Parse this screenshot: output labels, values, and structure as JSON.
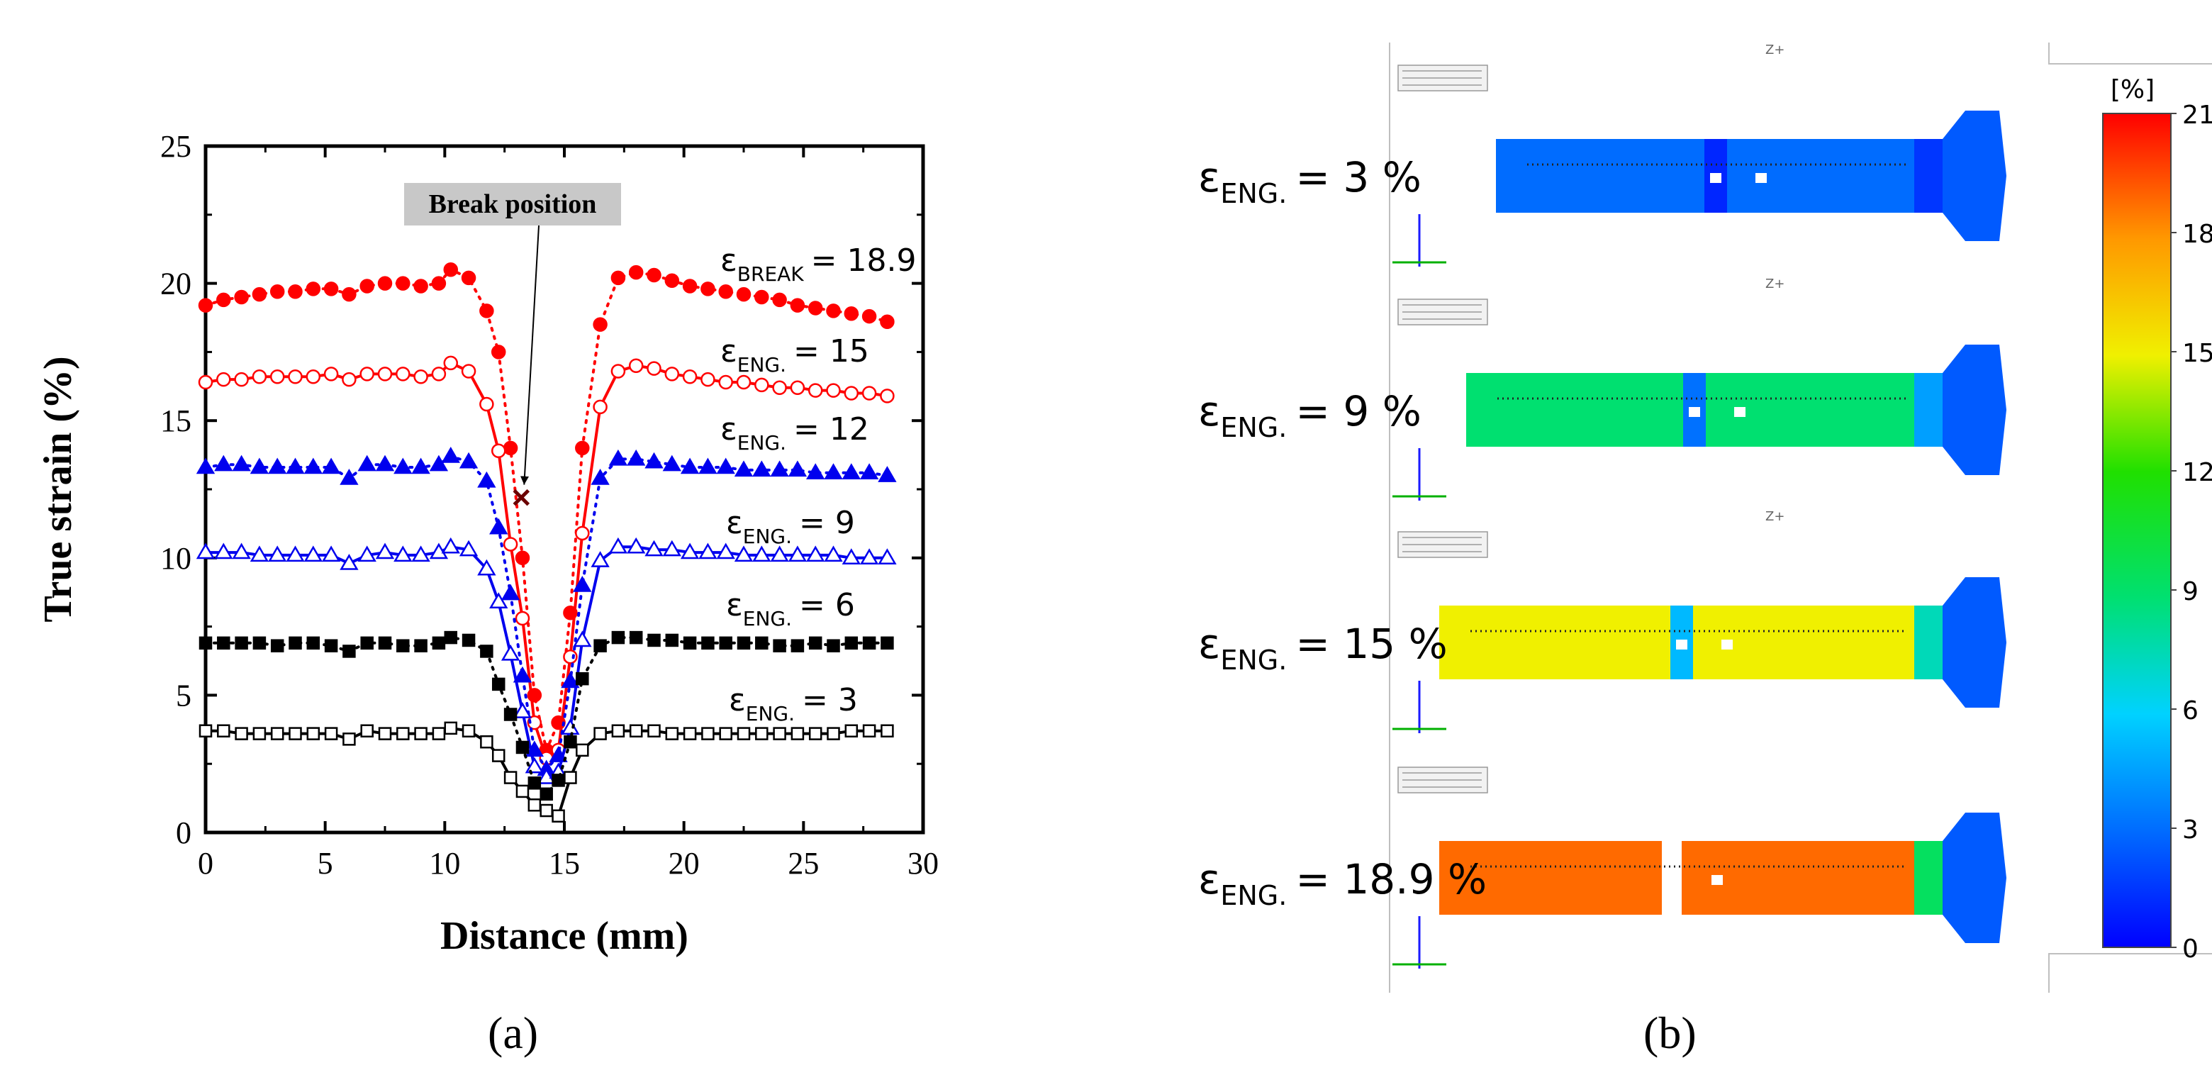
{
  "chart_data": {
    "type": "line",
    "title": "",
    "xlabel": "Distance (mm)",
    "ylabel": "True strain (%)",
    "xlim": [
      0,
      30
    ],
    "ylim": [
      0,
      25
    ],
    "xticks": [
      0,
      5,
      10,
      15,
      20,
      25,
      30
    ],
    "yticks": [
      0,
      5,
      10,
      15,
      20,
      25
    ],
    "annotation": {
      "text": "Break position",
      "x": 13.2,
      "y": 12.2
    },
    "x": [
      0,
      0.75,
      1.5,
      2.25,
      3,
      3.75,
      4.5,
      5.25,
      6,
      6.75,
      7.5,
      8.25,
      9,
      9.75,
      10.25,
      11,
      11.75,
      12.25,
      12.75,
      13.25,
      13.75,
      14.25,
      14.75,
      15.25,
      15.75,
      16.5,
      17.25,
      18,
      18.75,
      19.5,
      20.25,
      21,
      21.75,
      22.5,
      23.25,
      24,
      24.75,
      25.5,
      26.25,
      27,
      27.75,
      28.5
    ],
    "series": [
      {
        "name": "eps_BREAK",
        "label": {
          "sym": "ε",
          "sub": "BREAK",
          "value": "= 18.9"
        },
        "color": "#ff0000",
        "marker": "circle",
        "filled": true,
        "line": "dotted",
        "values": [
          19.2,
          19.4,
          19.5,
          19.6,
          19.7,
          19.7,
          19.8,
          19.8,
          19.6,
          19.9,
          20.0,
          20.0,
          19.9,
          20.0,
          20.5,
          20.2,
          19.0,
          17.5,
          14.0,
          10.0,
          5.0,
          3.0,
          4.0,
          8.0,
          14.0,
          18.5,
          20.2,
          20.4,
          20.3,
          20.1,
          19.9,
          19.8,
          19.7,
          19.6,
          19.5,
          19.4,
          19.2,
          19.1,
          19.0,
          18.9,
          18.8,
          18.6
        ]
      },
      {
        "name": "eps_ENG_15",
        "label": {
          "sym": "ε",
          "sub": "ENG.",
          "value": "= 15"
        },
        "color": "#ff0000",
        "marker": "circle",
        "filled": false,
        "line": "solid",
        "values": [
          16.4,
          16.5,
          16.5,
          16.6,
          16.6,
          16.6,
          16.6,
          16.7,
          16.5,
          16.7,
          16.7,
          16.7,
          16.6,
          16.7,
          17.1,
          16.8,
          15.6,
          13.9,
          10.5,
          7.8,
          4.0,
          2.7,
          3.0,
          6.4,
          10.9,
          15.5,
          16.8,
          17.0,
          16.9,
          16.7,
          16.6,
          16.5,
          16.4,
          16.4,
          16.3,
          16.2,
          16.2,
          16.1,
          16.1,
          16.0,
          16.0,
          15.9
        ]
      },
      {
        "name": "eps_ENG_12",
        "label": {
          "sym": "ε",
          "sub": "ENG.",
          "value": "= 12"
        },
        "color": "#0000ee",
        "marker": "triangle",
        "filled": true,
        "line": "dotted",
        "values": [
          13.3,
          13.4,
          13.4,
          13.3,
          13.3,
          13.3,
          13.3,
          13.3,
          12.9,
          13.4,
          13.4,
          13.3,
          13.3,
          13.4,
          13.7,
          13.5,
          12.8,
          11.1,
          8.7,
          5.7,
          3.0,
          2.3,
          2.8,
          5.5,
          9.0,
          12.9,
          13.6,
          13.6,
          13.5,
          13.4,
          13.3,
          13.3,
          13.3,
          13.2,
          13.2,
          13.2,
          13.2,
          13.1,
          13.1,
          13.1,
          13.1,
          13.0
        ]
      },
      {
        "name": "eps_ENG_9",
        "label": {
          "sym": "ε",
          "sub": "ENG.",
          "value": "= 9"
        },
        "color": "#0000ee",
        "marker": "triangle",
        "filled": false,
        "line": "solid",
        "values": [
          10.2,
          10.2,
          10.2,
          10.1,
          10.1,
          10.1,
          10.1,
          10.1,
          9.8,
          10.1,
          10.2,
          10.1,
          10.1,
          10.2,
          10.4,
          10.3,
          9.6,
          8.4,
          6.5,
          4.4,
          2.4,
          2.0,
          2.2,
          3.8,
          7.0,
          9.9,
          10.4,
          10.4,
          10.3,
          10.3,
          10.2,
          10.2,
          10.2,
          10.1,
          10.1,
          10.1,
          10.1,
          10.1,
          10.1,
          10.0,
          10.0,
          10.0
        ]
      },
      {
        "name": "eps_ENG_6",
        "label": {
          "sym": "ε",
          "sub": "ENG.",
          "value": "= 6"
        },
        "color": "#000000",
        "marker": "square",
        "filled": true,
        "line": "dotted",
        "values": [
          6.9,
          6.9,
          6.9,
          6.9,
          6.8,
          6.9,
          6.9,
          6.8,
          6.6,
          6.9,
          6.9,
          6.8,
          6.8,
          6.9,
          7.1,
          7.0,
          6.6,
          5.4,
          4.3,
          3.1,
          1.8,
          1.4,
          1.9,
          3.3,
          5.6,
          6.8,
          7.1,
          7.1,
          7.0,
          7.0,
          6.9,
          6.9,
          6.9,
          6.9,
          6.9,
          6.8,
          6.8,
          6.9,
          6.8,
          6.9,
          6.9,
          6.9
        ]
      },
      {
        "name": "eps_ENG_3",
        "label": {
          "sym": "ε",
          "sub": "ENG.",
          "value": "= 3"
        },
        "color": "#000000",
        "marker": "square",
        "filled": false,
        "line": "solid",
        "values": [
          3.7,
          3.7,
          3.6,
          3.6,
          3.6,
          3.6,
          3.6,
          3.6,
          3.4,
          3.7,
          3.6,
          3.6,
          3.6,
          3.6,
          3.8,
          3.7,
          3.3,
          2.8,
          2.0,
          1.5,
          1.0,
          0.8,
          0.6,
          2.0,
          3.0,
          3.6,
          3.7,
          3.7,
          3.7,
          3.6,
          3.6,
          3.6,
          3.6,
          3.6,
          3.6,
          3.6,
          3.6,
          3.6,
          3.6,
          3.7,
          3.7,
          3.7
        ]
      }
    ]
  },
  "panel_a": {
    "label": "(a)"
  },
  "panel_b": {
    "label": "(b)",
    "colorbar": {
      "unit": "[%]",
      "ticks": [
        "21",
        "18",
        "15",
        "12",
        "9",
        "6",
        "3",
        "0"
      ],
      "range": [
        0,
        21
      ]
    },
    "axis_marker": "Z+",
    "specimens": [
      {
        "sym": "ε",
        "sub": "ENG.",
        "value": "= 3 %",
        "strain": 3
      },
      {
        "sym": "ε",
        "sub": "ENG.",
        "value": "= 9 %",
        "strain": 9
      },
      {
        "sym": "ε",
        "sub": "ENG.",
        "value": "= 15 %",
        "strain": 15
      },
      {
        "sym": "ε",
        "sub": "ENG.",
        "value": "= 18.9 %",
        "strain": 18.9
      }
    ]
  }
}
